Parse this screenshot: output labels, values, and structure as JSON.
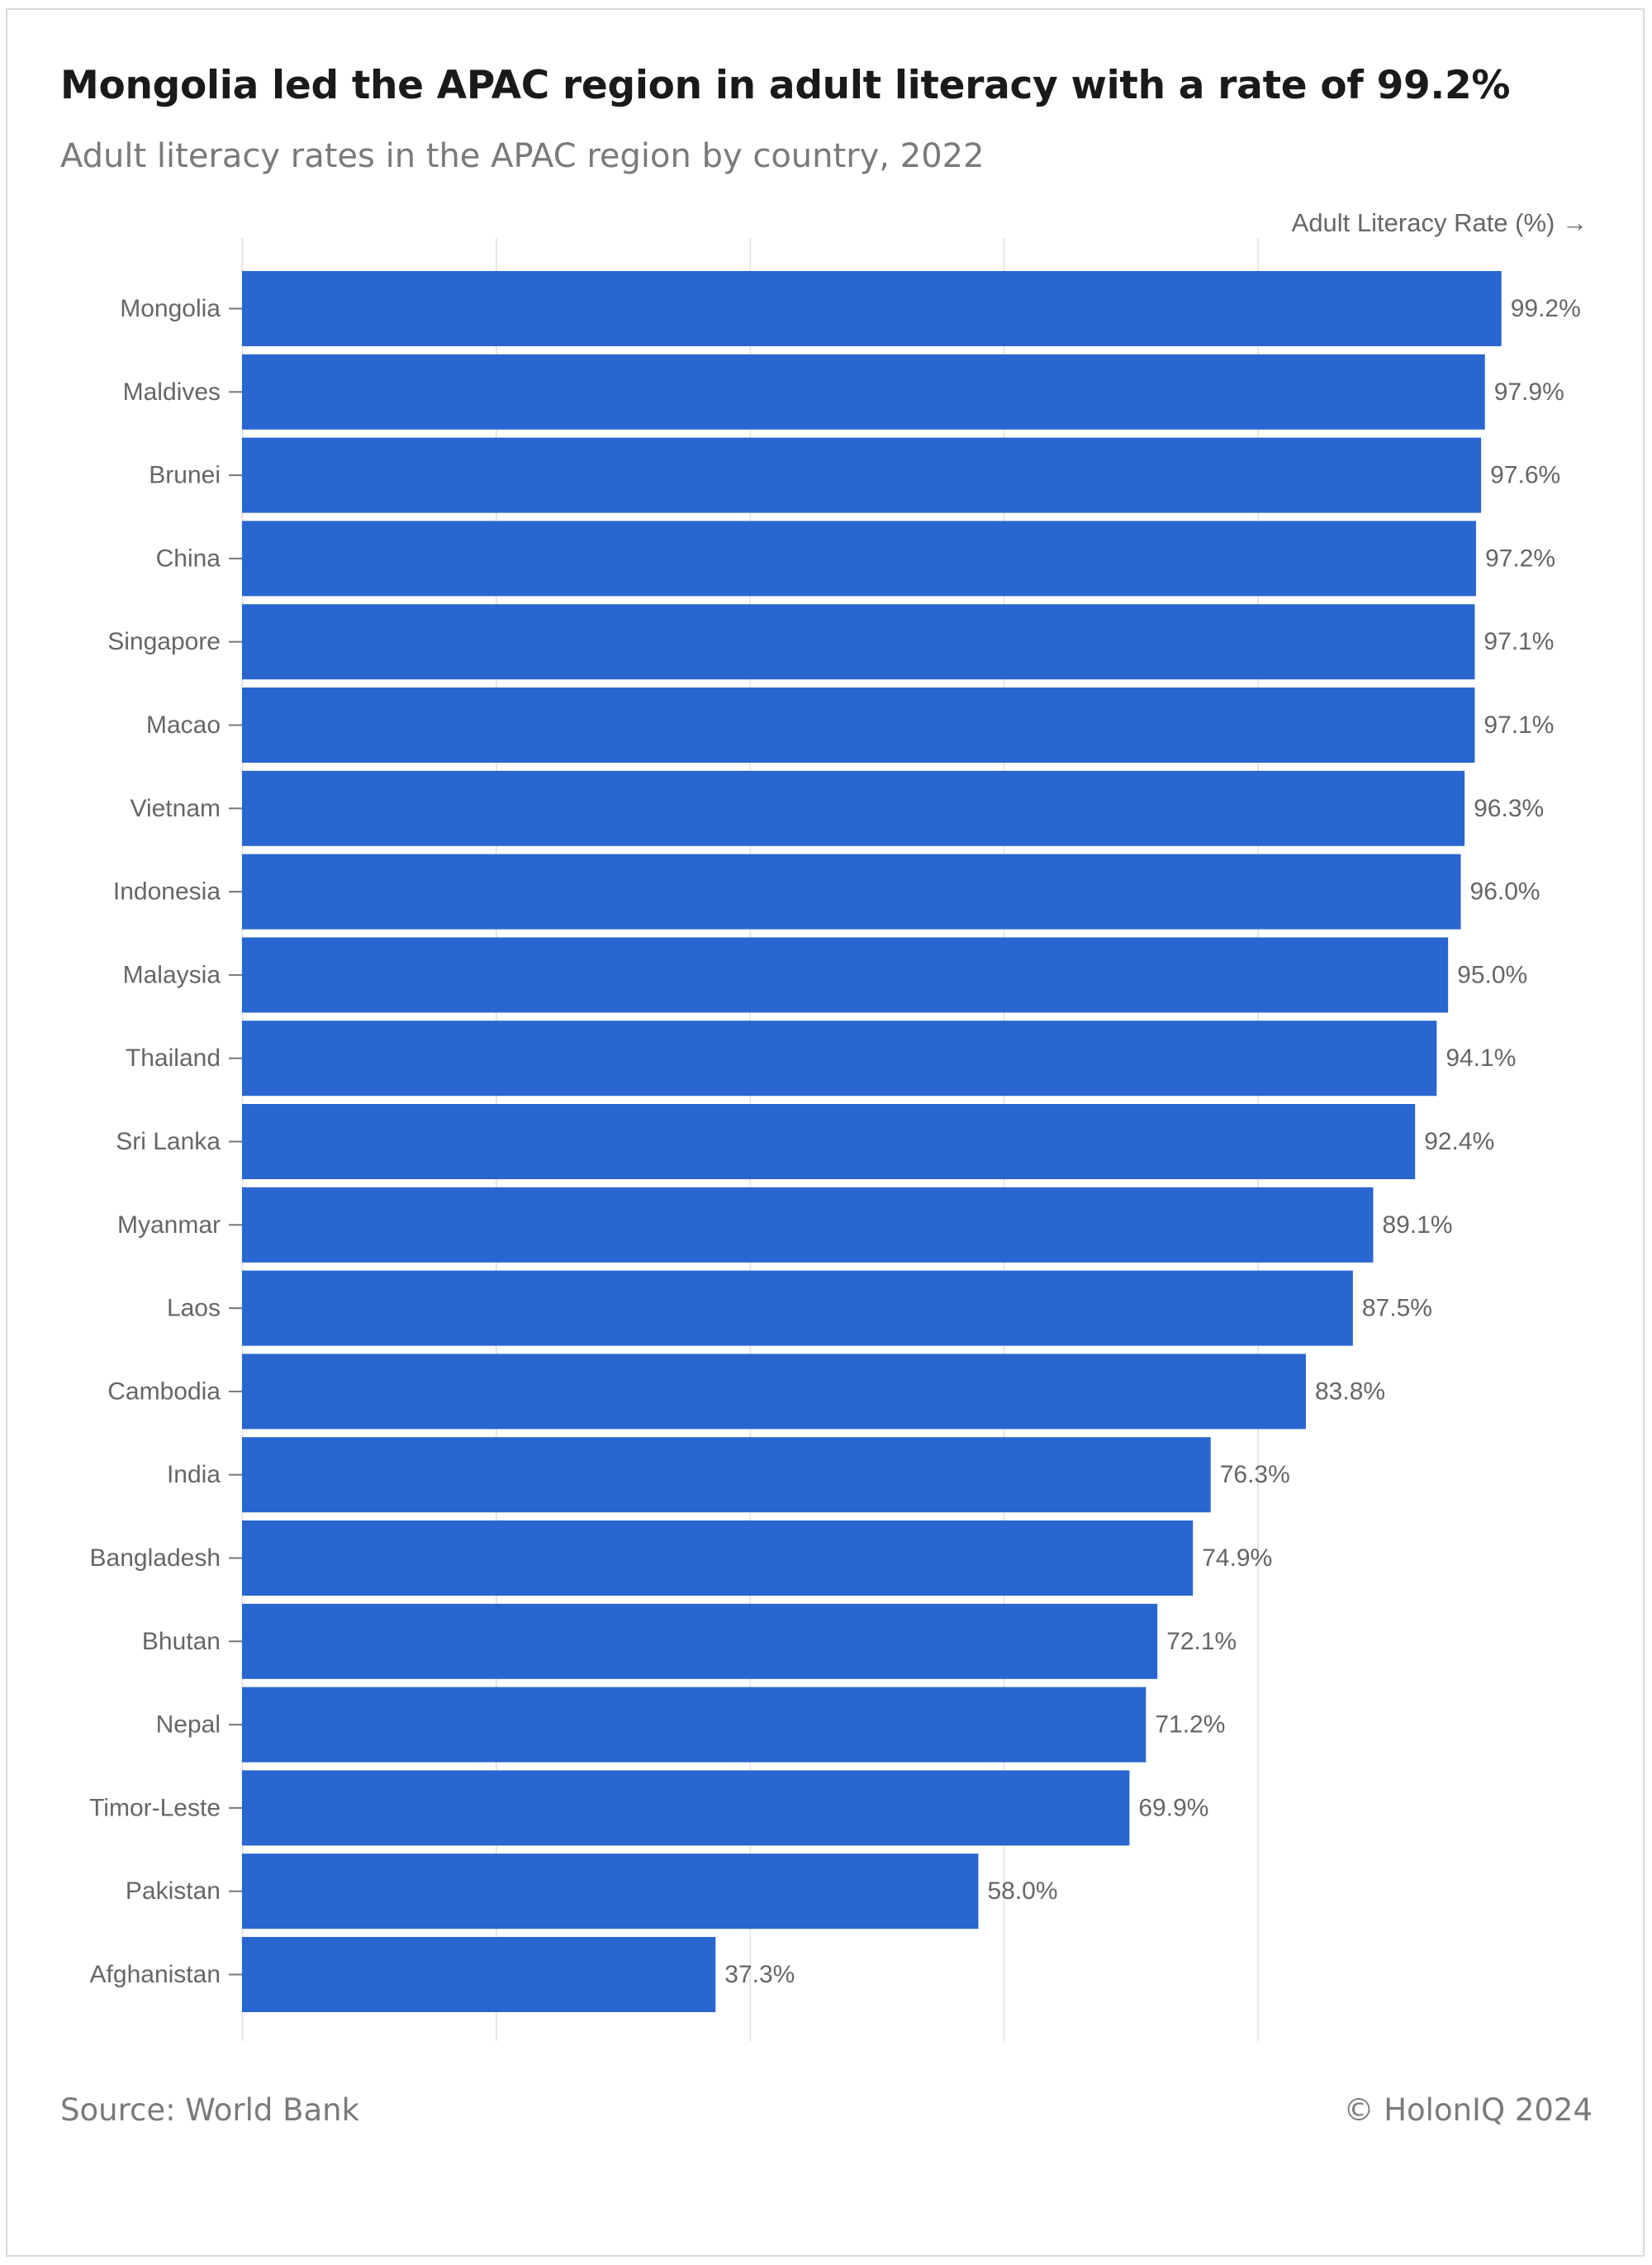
{
  "header": {
    "title": "Mongolia led the APAC region in adult literacy with a rate of 99.2%",
    "subtitle": "Adult literacy rates in the APAC region by country, 2022"
  },
  "footer": {
    "source": "Source: World Bank",
    "credit": "© HolonIQ 2024"
  },
  "colors": {
    "bar": "#2966cf",
    "grid": "#e6e6e6",
    "label": "#666666"
  },
  "chart_data": {
    "type": "bar",
    "orientation": "horizontal",
    "title": "Mongolia led the APAC region in adult literacy with a rate of 99.2%",
    "subtitle": "Adult literacy rates in the APAC region by country, 2022",
    "xlabel": "Adult Literacy Rate (%) →",
    "ylabel": "",
    "xlim": [
      0,
      100
    ],
    "grid": true,
    "value_suffix": "%",
    "categories": [
      "Mongolia",
      "Maldives",
      "Brunei",
      "China",
      "Singapore",
      "Macao",
      "Vietnam",
      "Indonesia",
      "Malaysia",
      "Thailand",
      "Sri Lanka",
      "Myanmar",
      "Laos",
      "Cambodia",
      "India",
      "Bangladesh",
      "Bhutan",
      "Nepal",
      "Timor-Leste",
      "Pakistan",
      "Afghanistan"
    ],
    "values": [
      99.2,
      97.9,
      97.6,
      97.2,
      97.1,
      97.1,
      96.3,
      96.0,
      95.0,
      94.1,
      92.4,
      89.1,
      87.5,
      83.8,
      76.3,
      74.9,
      72.1,
      71.2,
      69.9,
      58.0,
      37.3
    ],
    "value_labels": [
      "99.2%",
      "97.9%",
      "97.6%",
      "97.2%",
      "97.1%",
      "97.1%",
      "96.3%",
      "96.0%",
      "95.0%",
      "94.1%",
      "92.4%",
      "89.1%",
      "87.5%",
      "83.8%",
      "76.3%",
      "74.9%",
      "72.1%",
      "71.2%",
      "69.9%",
      "58.0%",
      "37.3%"
    ]
  }
}
